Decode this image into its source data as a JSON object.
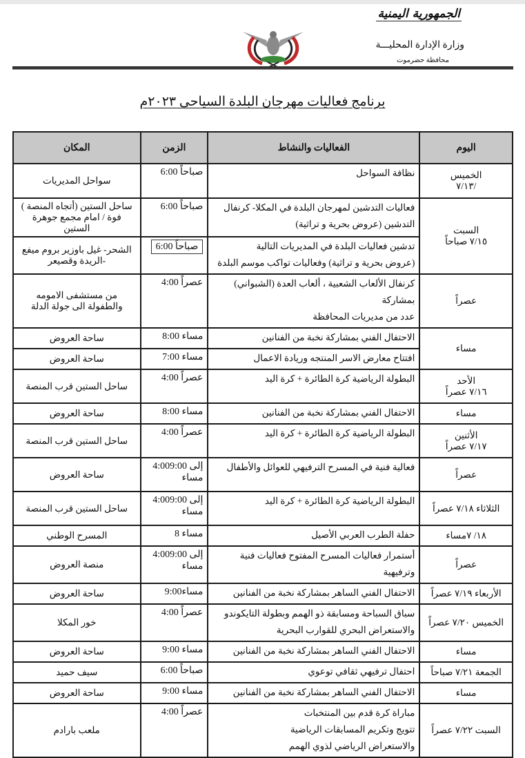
{
  "header": {
    "logo_text": "الجمهورية اليمنية",
    "ministry": "وزارة الإدارة المحليـــة",
    "governorate": "محافظة حضرموت",
    "emblem_icon": "yemen-eagle-emblem",
    "title": "برنامج فعاليات مهرجان البلدة السياحى ٢٠٢٣م"
  },
  "table": {
    "headers": {
      "day": "اليوم",
      "activity": "الفعاليات والنشاط",
      "time": "الزمن",
      "place": "المكان"
    },
    "header_bg": "#c8c8c8",
    "rows": [
      {
        "day": [
          "الخميس",
          "/٧/١٣"
        ],
        "activity": [
          "نظافة السواحل"
        ],
        "time": "6:00 صباحاً",
        "place": "سواحل المديريات"
      },
      {
        "day": [
          "السبت",
          "٧/١٥ صباحاً"
        ],
        "day_span": 2,
        "activity": [
          "فعاليات التدشين لمهرجان البلدة في المكلا- كرنفال",
          "التدشين (عروض بحرية و تراثية)"
        ],
        "time": "6:00 صباحاً",
        "place": "ساحل الستين (أتجاه المنصة ) فوة / امام مجمع جوهرة الستين"
      },
      {
        "activity": [
          "تدشين فعاليات البلدة في المديريات التالية",
          "(عروض بحرية و تراثية) وفعاليات تواكب موسم البلدة"
        ],
        "time": "6:00 صباحاً",
        "time_boxed": true,
        "place": "الشحر- غيل باوزير بروم ميفع -الريدة وقصيعر"
      },
      {
        "day": [
          "عصراً"
        ],
        "activity": [
          "كرنفال الألعاب الشعبية ، ألعاب العدة (الشبواني) بمشاركة",
          "عدد من مديريات المحافظة"
        ],
        "time": "4:00 عصراً",
        "place": "من مستشفى الامومه والطفولة الى جولة الدلة"
      },
      {
        "day": [
          "مساء"
        ],
        "day_span": 2,
        "activity": [
          "الاحتفال الفني بمشاركة نخبة من الفنانين"
        ],
        "time": "8:00 مساء",
        "place": "ساحة العروض"
      },
      {
        "activity": [
          "افتتاح معارض الاسر المنتجه وريادة الاعمال"
        ],
        "time": "7:00 مساء",
        "place": "ساحة العروض"
      },
      {
        "day": [
          "الأحد",
          "٧/١٦ عصراً"
        ],
        "activity": [
          "البطولة الرياضية كرة الطائرة + كرة اليد"
        ],
        "time": "4:00 عصراً",
        "place": "ساحل الستين قرب المنصة"
      },
      {
        "day": [
          "مساء"
        ],
        "activity": [
          "الاحتفال الفني بمشاركة نخبة من الفنانين"
        ],
        "time": "8:00 مساء",
        "place": "ساحة العروض"
      },
      {
        "day": [
          "الأثنين",
          "٧/١٧ عصراً"
        ],
        "activity": [
          "البطولة الرياضية كرة الطائرة + كرة اليد"
        ],
        "time": "4:00 عصراً",
        "place": "ساحل الستين قرب المنصة"
      },
      {
        "day": [
          "عصراً"
        ],
        "activity": [
          "فعالية فنية في المسرح الترفيهي للعوائل والأطفال"
        ],
        "time": "4:00إلى 9:00 مساء",
        "place": "ساحة العروض"
      },
      {
        "day": [
          "الثلاثاء ٧/١٨ عصراً"
        ],
        "activity": [
          "البطولة الرياضية كرة الطائرة + كرة اليد"
        ],
        "time": "4:00إلى 9:00 مساء",
        "place": "ساحل الستين قرب المنصة"
      },
      {
        "day": [
          "١٨/ ٧مساء"
        ],
        "activity": [
          "حفلة الطرب العربي الأصيل"
        ],
        "time": "8 مساء",
        "place": "المسرح الوطني"
      },
      {
        "day": [
          "عصراً"
        ],
        "activity": [
          "أستمرار فعاليات المسرح المفتوح فعاليات فنية وترفيهية"
        ],
        "time": "4:00إلى 9:00 مساء",
        "place": "منصة العروض"
      },
      {
        "day": [
          "الأربعاء ٧/١٩ عصراً"
        ],
        "activity": [
          "الاحتفال الفني الساهر بمشاركة نخبة من الفنانين"
        ],
        "time": "9:00مساء",
        "place": "ساحة العروض"
      },
      {
        "day": [
          "الخميس ٧/٢٠ عصراً"
        ],
        "activity": [
          "سباق السباحة ومسابقة ذو الهمم وبطولة التايكوندو",
          "والاستعراض البحري للقوارب البحرية"
        ],
        "time": "4:00 عصراً",
        "place": "خور المكلا"
      },
      {
        "day": [
          "مساء"
        ],
        "activity": [
          "الاحتفال الفني الساهر بمشاركة نخبة من الفنانين"
        ],
        "time": "9:00 مساء",
        "place": "ساحة العروض"
      },
      {
        "day": [
          "الجمعة ٧/٢١ صباحاً"
        ],
        "activity": [
          "احتفال ترفيهي ثقافي توعوي"
        ],
        "time": "6:00 صباحاً",
        "place": "سيف حميد"
      },
      {
        "day": [
          "مساء"
        ],
        "activity": [
          "الاحتفال الفني الساهر بمشاركة نخبة من الفنانين"
        ],
        "time": "9:00 مساء",
        "place": "ساحة العروض"
      },
      {
        "day": [
          "السبت ٧/٢٢ عصراً"
        ],
        "activity": [
          "مباراة كرة قدم بين المنتخبات",
          "تتويج وتكريم المسابقات الرياضية",
          "والاستعراض الرياضي لذوي الهمم"
        ],
        "time": "4:00 عصراً",
        "place": "ملعب بارادم"
      }
    ]
  }
}
